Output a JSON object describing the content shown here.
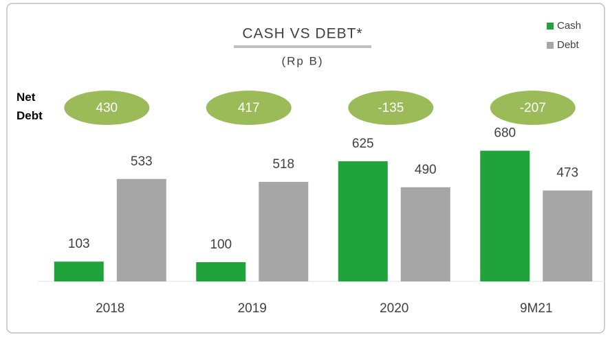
{
  "chart_data": {
    "type": "bar",
    "title": "CASH VS DEBT*",
    "subtitle": "(Rp B)",
    "categories": [
      "2018",
      "2019",
      "2020",
      "9M21"
    ],
    "series": [
      {
        "name": "Cash",
        "color": "#1fa33a",
        "values": [
          103,
          100,
          625,
          680
        ]
      },
      {
        "name": "Debt",
        "color": "#a6a6a6",
        "values": [
          533,
          518,
          490,
          473
        ]
      }
    ],
    "net_debt": {
      "label": "Net Debt",
      "color": "#9bbb59",
      "values": [
        430,
        417,
        -135,
        -207
      ]
    },
    "ylim": [
      0,
      800
    ],
    "legend": "top-right"
  }
}
